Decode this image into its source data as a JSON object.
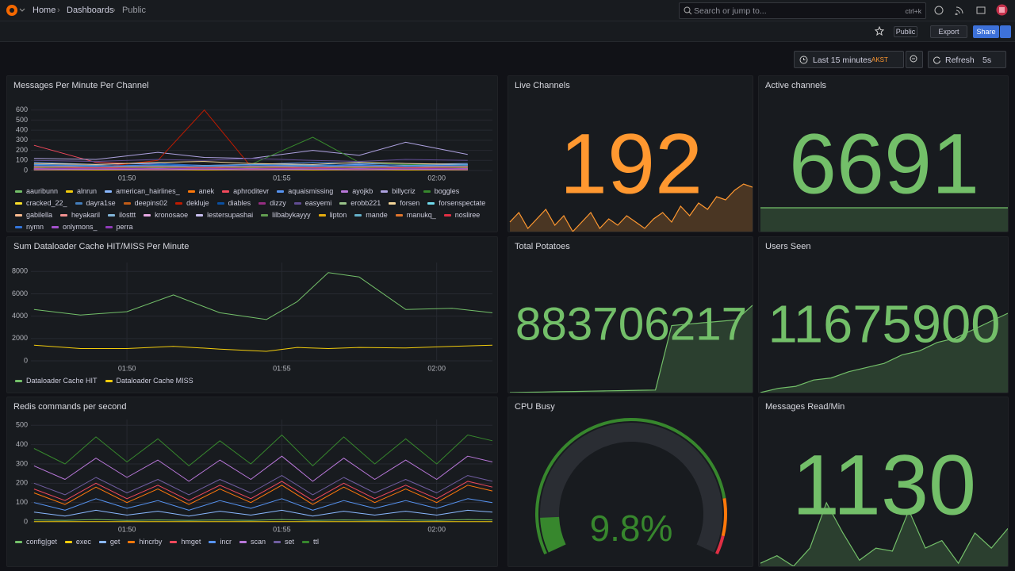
{
  "header": {
    "breadcrumbs": [
      "Home",
      "Dashboards",
      "Public"
    ],
    "search_placeholder": "Search or jump to...",
    "search_shortcut": "ctrl+k"
  },
  "toolbar": {
    "visibility": "Public",
    "export": "Export",
    "share": "Share",
    "time_range": "Last 15 minutes",
    "timezone": "AKST",
    "refresh": "Refresh",
    "refresh_interval": "5s"
  },
  "panels": [
    {
      "type": "line",
      "title": "Messages Per Minute Per Channel",
      "x": [
        107,
        109,
        111,
        112.5,
        114,
        116,
        117.5,
        119,
        121
      ],
      "xlim": [
        106.9,
        121.8
      ],
      "xticks": [
        {
          "value": 110,
          "label": "01:50"
        },
        {
          "value": 115,
          "label": "01:55"
        },
        {
          "value": 120,
          "label": "02:00"
        }
      ],
      "ylim": [
        0,
        700
      ],
      "yticks": [
        0,
        100,
        200,
        300,
        400,
        500,
        600
      ],
      "series": [
        {
          "name": "aauribunn",
          "color": "#73bf69",
          "values": [
            60,
            40,
            30,
            50,
            40,
            60,
            50,
            40,
            50
          ]
        },
        {
          "name": "alnrun",
          "color": "#f2cc0c",
          "values": [
            20,
            10,
            15,
            10,
            20,
            15,
            10,
            20,
            15
          ]
        },
        {
          "name": "american_hairlines_",
          "color": "#8ab8ff",
          "values": [
            40,
            30,
            50,
            40,
            30,
            50,
            60,
            40,
            50
          ]
        },
        {
          "name": "anek",
          "color": "#ff780a",
          "values": [
            10,
            20,
            10,
            15,
            10,
            20,
            10,
            15,
            10
          ]
        },
        {
          "name": "aphroditevr",
          "color": "#f2495c",
          "values": [
            250,
            80,
            60,
            40,
            30,
            50,
            40,
            30,
            40
          ]
        },
        {
          "name": "aquaismissing",
          "color": "#5794f2",
          "values": [
            80,
            60,
            70,
            50,
            60,
            80,
            70,
            60,
            70
          ]
        },
        {
          "name": "ayojkb",
          "color": "#b877d9",
          "values": [
            30,
            20,
            30,
            20,
            30,
            20,
            30,
            20,
            30
          ]
        },
        {
          "name": "billycriz",
          "color": "#aea2e0",
          "values": [
            120,
            110,
            180,
            130,
            120,
            200,
            150,
            280,
            160
          ]
        },
        {
          "name": "boggles",
          "color": "#37872d",
          "values": [
            40,
            30,
            50,
            40,
            60,
            330,
            80,
            60,
            50
          ]
        },
        {
          "name": "cracked_22_",
          "color": "#fade2a",
          "values": [
            10,
            5,
            10,
            5,
            10,
            5,
            10,
            5,
            10
          ]
        },
        {
          "name": "dayra1se",
          "color": "#447ebc",
          "values": [
            30,
            40,
            30,
            40,
            30,
            40,
            30,
            40,
            30
          ]
        },
        {
          "name": "deepins02",
          "color": "#c15c17",
          "values": [
            20,
            30,
            20,
            30,
            20,
            30,
            20,
            30,
            20
          ]
        },
        {
          "name": "dekluje",
          "color": "#bf1b00",
          "values": [
            20,
            30,
            100,
            600,
            40,
            20,
            30,
            20,
            30
          ]
        },
        {
          "name": "diables",
          "color": "#0a50a1",
          "values": [
            50,
            40,
            60,
            50,
            40,
            60,
            50,
            40,
            60
          ]
        },
        {
          "name": "dizzy",
          "color": "#962d82",
          "values": [
            15,
            20,
            15,
            20,
            15,
            20,
            15,
            20,
            15
          ]
        },
        {
          "name": "easyemi",
          "color": "#614d93",
          "values": [
            100,
            90,
            110,
            100,
            120,
            100,
            90,
            110,
            100
          ]
        },
        {
          "name": "erobb221",
          "color": "#9ac48a",
          "values": [
            5,
            10,
            5,
            10,
            5,
            10,
            5,
            10,
            5
          ]
        },
        {
          "name": "forsen",
          "color": "#f4d598",
          "values": [
            70,
            60,
            80,
            90,
            70,
            60,
            80,
            70,
            60
          ]
        },
        {
          "name": "forsenspectate",
          "color": "#70dbed",
          "values": [
            10,
            15,
            10,
            15,
            10,
            15,
            10,
            15,
            10
          ]
        },
        {
          "name": "gabilella",
          "color": "#f9ba8f",
          "values": [
            25,
            20,
            25,
            20,
            25,
            20,
            25,
            20,
            25
          ]
        },
        {
          "name": "heyakaril",
          "color": "#f29191",
          "values": [
            40,
            50,
            40,
            50,
            40,
            50,
            40,
            50,
            40
          ]
        },
        {
          "name": "ilosttt",
          "color": "#82b5d8",
          "values": [
            60,
            50,
            40,
            50,
            60,
            50,
            40,
            50,
            60
          ]
        },
        {
          "name": "kronosaoe",
          "color": "#e5a8e2",
          "values": [
            10,
            10,
            10,
            10,
            10,
            10,
            10,
            10,
            10
          ]
        },
        {
          "name": "lestersupashai",
          "color": "#c8bfef",
          "values": [
            20,
            25,
            20,
            25,
            20,
            25,
            20,
            25,
            20
          ]
        },
        {
          "name": "lilbabykayyy",
          "color": "#629e51",
          "values": [
            30,
            20,
            30,
            20,
            30,
            20,
            30,
            20,
            30
          ]
        },
        {
          "name": "lipton",
          "color": "#e5ac0e",
          "values": [
            5,
            5,
            5,
            5,
            5,
            5,
            5,
            5,
            5
          ]
        },
        {
          "name": "mande",
          "color": "#64b0c8",
          "values": [
            45,
            35,
            45,
            35,
            45,
            35,
            45,
            35,
            45
          ]
        },
        {
          "name": "manukq_",
          "color": "#e0752d",
          "values": [
            15,
            25,
            15,
            25,
            15,
            25,
            15,
            25,
            15
          ]
        },
        {
          "name": "nosliree",
          "color": "#e02f44",
          "values": [
            35,
            30,
            35,
            30,
            35,
            30,
            35,
            30,
            35
          ]
        },
        {
          "name": "nymn",
          "color": "#3274d9",
          "values": [
            55,
            45,
            55,
            45,
            55,
            45,
            55,
            45,
            55
          ]
        },
        {
          "name": "onlymons_",
          "color": "#a352cc",
          "values": [
            8,
            12,
            8,
            12,
            8,
            12,
            8,
            12,
            8
          ]
        },
        {
          "name": "perra",
          "color": "#8f3bb8",
          "values": [
            18,
            22,
            18,
            22,
            18,
            22,
            18,
            22,
            18
          ]
        }
      ]
    },
    {
      "type": "stat",
      "title": "Live Channels",
      "value": 192,
      "color": "#ff9830",
      "sparkline": [
        60,
        90,
        40,
        70,
        100,
        50,
        80,
        30,
        60,
        90,
        40,
        70,
        50,
        80,
        60,
        40,
        70,
        90,
        60,
        110,
        80,
        120,
        100,
        140,
        130,
        160,
        180,
        170
      ]
    },
    {
      "type": "stat",
      "title": "Active channels",
      "value": 6691,
      "color": "#73bf69",
      "sparkline": [
        6691,
        6691,
        6691,
        6691,
        6691,
        6691,
        6691,
        6691,
        6691,
        6691
      ]
    },
    {
      "type": "line",
      "title": "Sum Dataloader Cache HIT/MISS Per Minute",
      "x": [
        107,
        108.5,
        110,
        111.5,
        113,
        114.5,
        115.5,
        116.5,
        117.5,
        119,
        120.5,
        121.8
      ],
      "xlim": [
        106.9,
        121.8
      ],
      "xticks": [
        {
          "value": 110,
          "label": "01:50"
        },
        {
          "value": 115,
          "label": "01:55"
        },
        {
          "value": 120,
          "label": "02:00"
        }
      ],
      "ylim": [
        0,
        8800
      ],
      "yticks": [
        0,
        2000,
        4000,
        6000,
        8000
      ],
      "series": [
        {
          "name": "Dataloader Cache HIT",
          "color": "#73bf69",
          "values": [
            4600,
            4100,
            4400,
            5900,
            4300,
            3700,
            5300,
            7900,
            7500,
            4600,
            4700,
            4300
          ]
        },
        {
          "name": "Dataloader Cache MISS",
          "color": "#f2cc0c",
          "values": [
            1400,
            1100,
            1100,
            1300,
            1050,
            850,
            1200,
            1100,
            1200,
            1150,
            1300,
            1400
          ]
        }
      ]
    },
    {
      "type": "stat",
      "title": "Total Potatoes",
      "value": 883706217,
      "color": "#73bf69",
      "sparkline": [
        883700100,
        883700120,
        883700140,
        883700160,
        883700180,
        883700200,
        883700220,
        883700240,
        883700260,
        883700280,
        883704800,
        883704900,
        883705000,
        883705100,
        883705200,
        883706217
      ]
    },
    {
      "type": "stat",
      "title": "Users Seen",
      "value": 11675900,
      "color": "#73bf69",
      "sparkline": [
        11674000,
        11674100,
        11674150,
        11674300,
        11674350,
        11674500,
        11674600,
        11674700,
        11674900,
        11675000,
        11675200,
        11675300,
        11675500,
        11675700,
        11675900
      ]
    },
    {
      "type": "line",
      "title": "Redis commands per second",
      "x": [
        107,
        108,
        109,
        110,
        111,
        112,
        113,
        114,
        115,
        116,
        117,
        118,
        119,
        120,
        121,
        121.8
      ],
      "xlim": [
        106.9,
        121.8
      ],
      "xticks": [
        {
          "value": 110,
          "label": "01:50"
        },
        {
          "value": 115,
          "label": "01:55"
        },
        {
          "value": 120,
          "label": "02:00"
        }
      ],
      "ylim": [
        0,
        530
      ],
      "yticks": [
        0,
        100,
        200,
        300,
        400,
        500
      ],
      "series": [
        {
          "name": "config|get",
          "color": "#73bf69",
          "values": [
            10,
            8,
            12,
            8,
            10,
            8,
            10,
            8,
            12,
            8,
            10,
            8,
            10,
            8,
            12,
            10
          ]
        },
        {
          "name": "exec",
          "color": "#f2cc0c",
          "values": [
            1,
            1,
            1,
            1,
            1,
            1,
            1,
            1,
            1,
            1,
            1,
            1,
            1,
            1,
            1,
            1
          ]
        },
        {
          "name": "get",
          "color": "#8ab8ff",
          "values": [
            50,
            30,
            60,
            35,
            55,
            30,
            55,
            35,
            60,
            30,
            55,
            35,
            55,
            35,
            60,
            50
          ]
        },
        {
          "name": "hincrby",
          "color": "#ff780a",
          "values": [
            150,
            90,
            180,
            100,
            170,
            90,
            170,
            100,
            190,
            90,
            180,
            100,
            170,
            100,
            190,
            160
          ]
        },
        {
          "name": "hmget",
          "color": "#f2495c",
          "values": [
            170,
            110,
            200,
            120,
            190,
            110,
            190,
            120,
            210,
            110,
            200,
            120,
            190,
            120,
            210,
            180
          ]
        },
        {
          "name": "incr",
          "color": "#5794f2",
          "values": [
            100,
            60,
            120,
            70,
            110,
            60,
            110,
            70,
            120,
            60,
            110,
            70,
            110,
            70,
            120,
            100
          ]
        },
        {
          "name": "scan",
          "color": "#b877d9",
          "values": [
            290,
            220,
            330,
            230,
            320,
            210,
            320,
            220,
            340,
            210,
            330,
            220,
            320,
            220,
            340,
            310
          ]
        },
        {
          "name": "set",
          "color": "#705da0",
          "values": [
            200,
            140,
            230,
            150,
            220,
            140,
            220,
            150,
            240,
            140,
            230,
            150,
            220,
            150,
            240,
            210
          ]
        },
        {
          "name": "ttl",
          "color": "#37872d",
          "values": [
            380,
            300,
            440,
            310,
            430,
            290,
            420,
            300,
            450,
            290,
            440,
            300,
            430,
            300,
            450,
            420
          ]
        }
      ]
    },
    {
      "type": "gauge",
      "title": "CPU Busy",
      "value": 9.8,
      "value_label": "9.8%",
      "range": [
        0,
        100
      ],
      "color": "#37872d",
      "thresholds": [
        {
          "value": 0,
          "color": "#37872d"
        },
        {
          "value": 85,
          "color": "#ff780a"
        },
        {
          "value": 95,
          "color": "#e02f44"
        }
      ]
    },
    {
      "type": "stat",
      "title": "Messages Read/Min",
      "value": 1130,
      "color": "#73bf69",
      "sparkline": [
        900,
        950,
        880,
        1000,
        1300,
        1100,
        920,
        1000,
        980,
        1250,
        1000,
        1050,
        900,
        1100,
        1000,
        1130
      ]
    }
  ]
}
